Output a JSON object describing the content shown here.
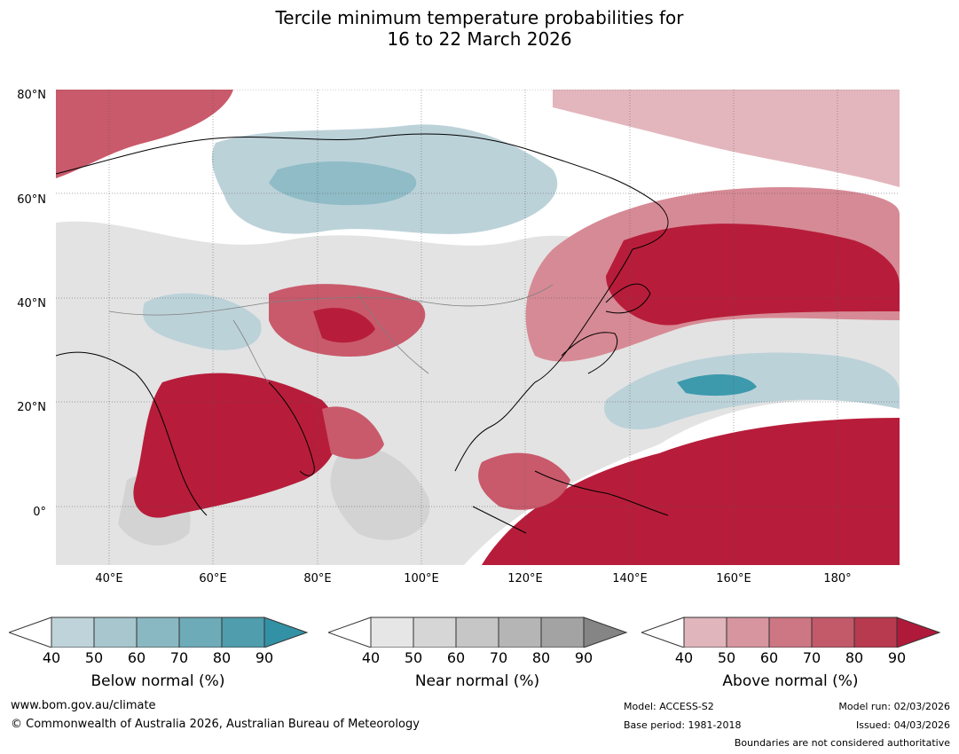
{
  "title": {
    "line1": "Tercile minimum temperature probabilities for",
    "line2": "16 to 22 March 2026"
  },
  "map": {
    "lat_labels": [
      "80°N",
      "60°N",
      "40°N",
      "20°N",
      "0°"
    ],
    "lon_labels": [
      "40°E",
      "60°E",
      "80°E",
      "100°E",
      "120°E",
      "140°E",
      "160°E",
      "180°"
    ],
    "colors": {
      "ocean_base": "#ffffff",
      "near_light": "#e3e3e3",
      "near_mid": "#d3d3d3",
      "below_light": "#bcd2d9",
      "below_mid": "#8fbcc6",
      "below_dark": "#3c9aac",
      "above_light": "#e3b6bd",
      "above_mid": "#d68a95",
      "above_strong": "#c95a6b",
      "above_dark": "#b71d3a"
    }
  },
  "legends": [
    {
      "name": "below",
      "title": "Below normal (%)",
      "ticks": [
        "40",
        "50",
        "60",
        "70",
        "80",
        "90"
      ],
      "colors": [
        "#bfd3da",
        "#a7c6cd",
        "#8ab8c2",
        "#6eabb8",
        "#4f9dad",
        "#3391a5"
      ]
    },
    {
      "name": "near",
      "title": "Near normal (%)",
      "ticks": [
        "40",
        "50",
        "60",
        "70",
        "80",
        "90"
      ],
      "colors": [
        "#e6e6e6",
        "#d6d6d6",
        "#c6c6c6",
        "#b5b5b5",
        "#a3a3a3",
        "#858585"
      ]
    },
    {
      "name": "above",
      "title": "Above normal (%)",
      "ticks": [
        "40",
        "50",
        "60",
        "70",
        "80",
        "90"
      ],
      "colors": [
        "#e0b5bc",
        "#d6959f",
        "#cc7783",
        "#c25a6a",
        "#b83a4f",
        "#b01a3a"
      ]
    }
  ],
  "footer": {
    "website": "www.bom.gov.au/climate",
    "copyright": "© Commonwealth of Australia 2026, Australian Bureau of Meteorology",
    "model": "Model: ACCESS-S2",
    "base_period": "Base period: 1981-2018",
    "model_run": "Model run: 02/03/2026",
    "issued": "Issued: 04/03/2026",
    "boundaries": "Boundaries are not considered authoritative"
  }
}
